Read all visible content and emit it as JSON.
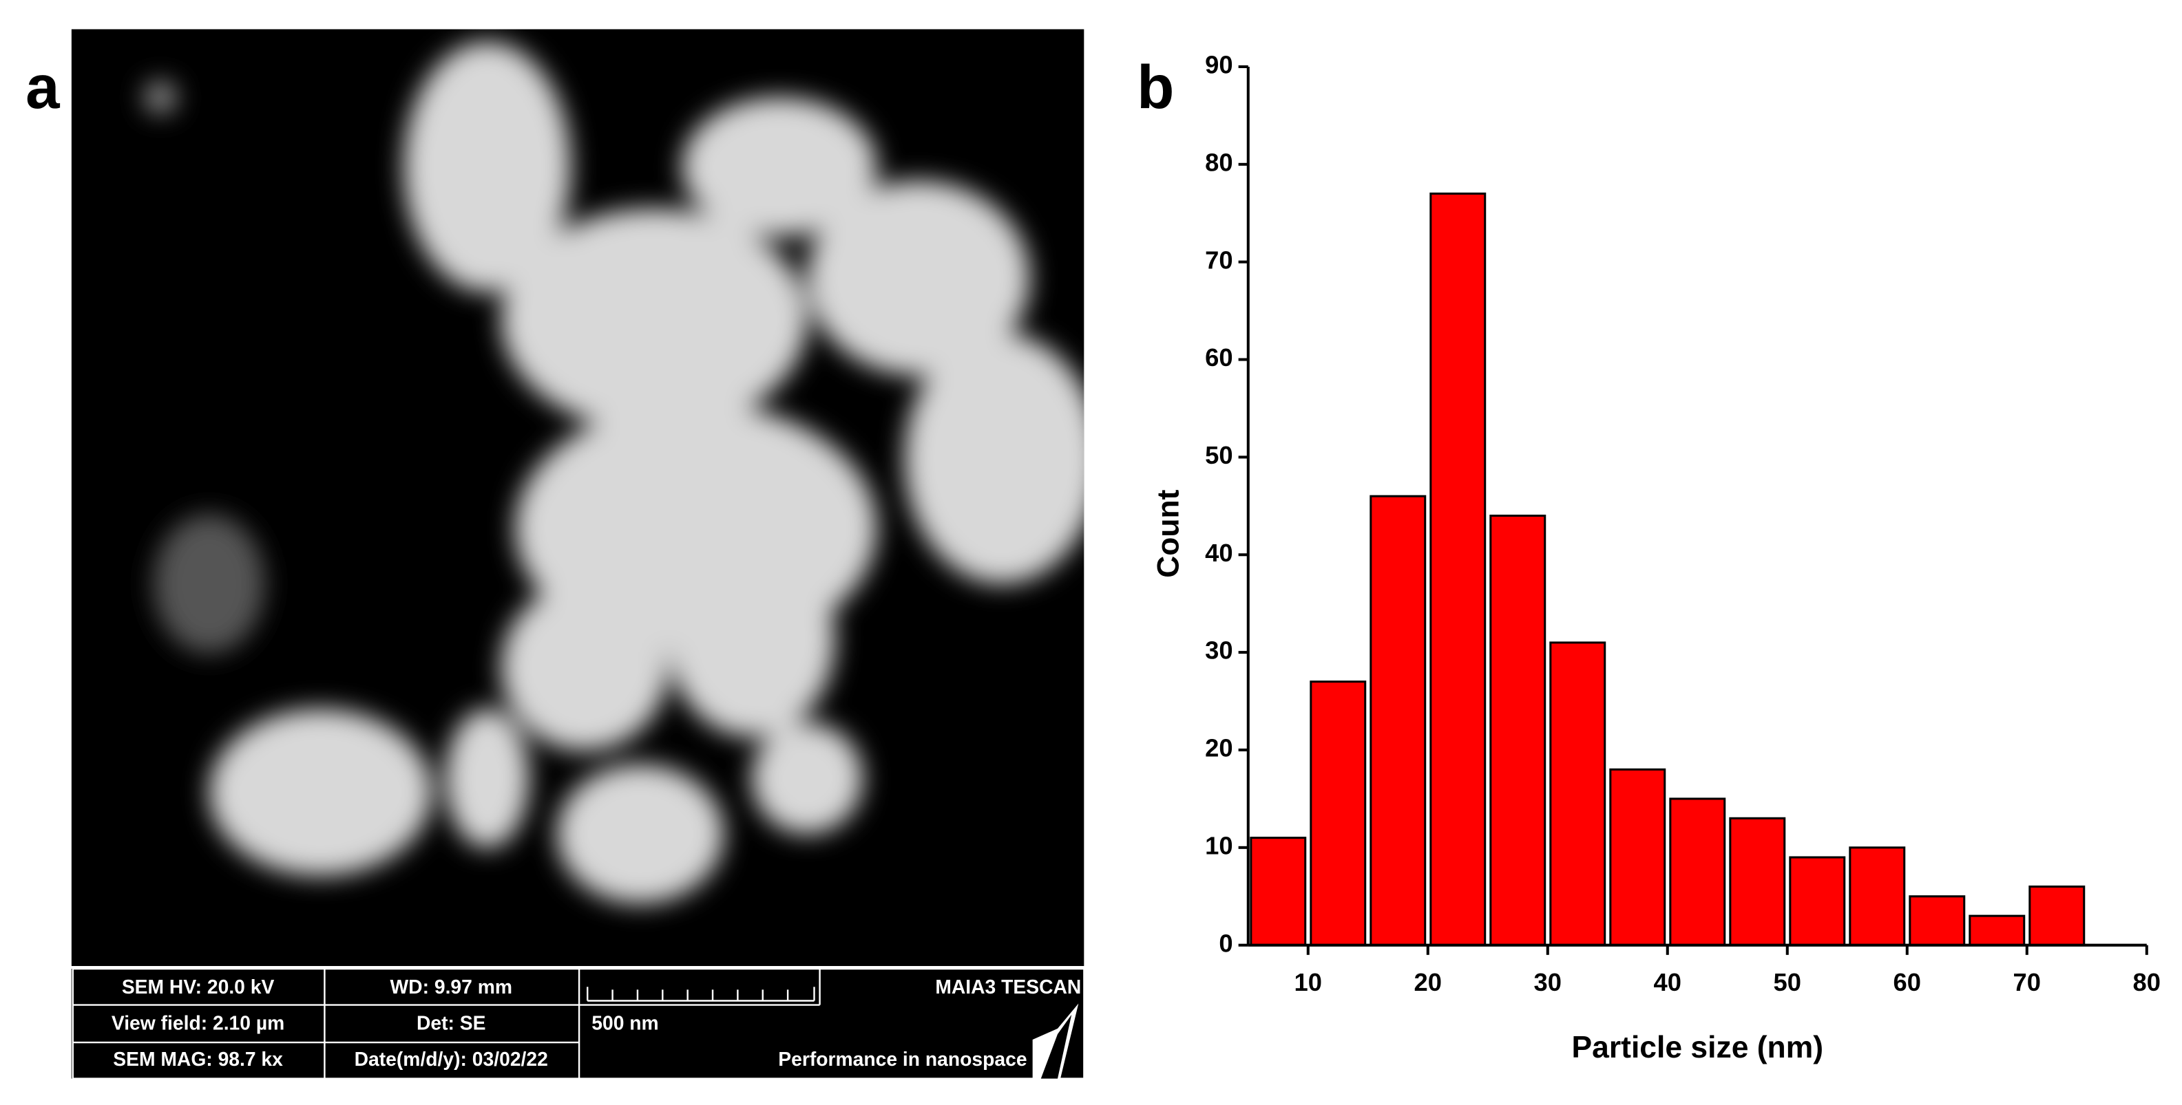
{
  "panel_labels": [
    "a",
    "b"
  ],
  "sem_info": {
    "rows": [
      [
        "SEM HV: 20.0 kV",
        "WD: 9.97 mm",
        "MAIA3 TESCAN"
      ],
      [
        "View field: 2.10 µm",
        "Det: SE",
        "500 nm"
      ],
      [
        "SEM MAG: 98.7 kx",
        "Date(m/d/y): 03/02/22",
        "Performance in nanospace"
      ]
    ]
  },
  "chart_data": {
    "type": "histogram",
    "xlabel": "Particle size (nm)",
    "ylabel": "Count",
    "bins": [
      5,
      10,
      15,
      20,
      25,
      30,
      35,
      40,
      45,
      50,
      55,
      60,
      65,
      70,
      75
    ],
    "values": [
      11,
      27,
      46,
      77,
      44,
      31,
      18,
      15,
      13,
      9,
      10,
      5,
      3,
      6
    ],
    "color": "#ff0000",
    "xlim": [
      5,
      80
    ],
    "ylim": [
      0,
      90
    ],
    "xticks": [
      10,
      20,
      30,
      40,
      50,
      60,
      70,
      80
    ],
    "yticks": [
      0,
      10,
      20,
      30,
      40,
      50,
      60,
      70,
      80,
      90
    ]
  }
}
